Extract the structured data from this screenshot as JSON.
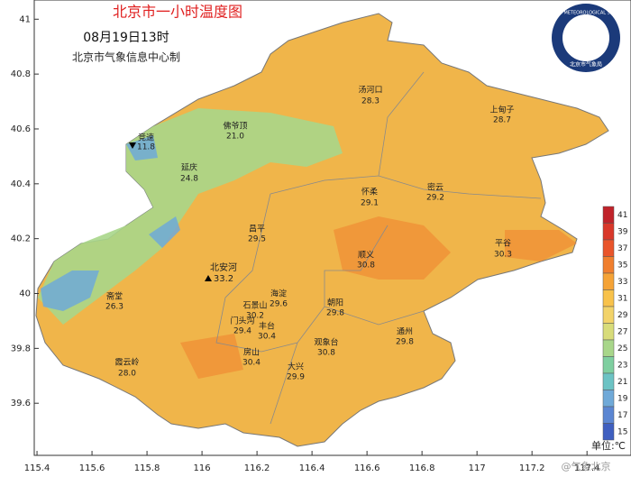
{
  "title": "北京市一小时温度图",
  "subtitle": "08月19日13时",
  "source": "北京市气象信息中心制",
  "logo": {
    "text": "BEIJING METEOROLOGICAL SERVICE",
    "org": "北京市气象局"
  },
  "axes": {
    "xlim": [
      115.39,
      117.56
    ],
    "ylim": [
      39.41,
      41.07
    ],
    "xticks": [
      115.4,
      115.6,
      115.8,
      116,
      116.2,
      116.4,
      116.6,
      116.8,
      117,
      117.2,
      117.4
    ],
    "yticks": [
      39.6,
      39.8,
      40,
      40.2,
      40.4,
      40.6,
      40.8,
      41
    ]
  },
  "legend": {
    "unit": "单位:℃",
    "values": [
      41,
      39,
      37,
      35,
      33,
      31,
      29,
      27,
      25,
      23,
      21,
      19,
      17,
      15
    ],
    "colors": [
      "#c0232a",
      "#d9382a",
      "#e9552b",
      "#f07f2e",
      "#f5a336",
      "#f8c24b",
      "#f2d36a",
      "#d8dc7a",
      "#a8d68a",
      "#7fcfa0",
      "#6cc3c4",
      "#6fa9d8",
      "#5b86d2",
      "#3f5fc0"
    ]
  },
  "stations": [
    {
      "name": "汤河口",
      "temp": "28.3"
    },
    {
      "name": "上甸子",
      "temp": "28.7"
    },
    {
      "name": "佛爷顶",
      "temp": "21.0"
    },
    {
      "name": "竞速",
      "temp": "11.8"
    },
    {
      "name": "延庆",
      "temp": "24.8"
    },
    {
      "name": "怀柔",
      "temp": "29.1"
    },
    {
      "name": "密云",
      "temp": "29.2"
    },
    {
      "name": "昌平",
      "temp": "29.5"
    },
    {
      "name": "平谷",
      "temp": "30.3"
    },
    {
      "name": "顺义",
      "temp": "30.8"
    },
    {
      "name": "北安河",
      "temp": "33.2"
    },
    {
      "name": "斋堂",
      "temp": "26.3"
    },
    {
      "name": "海淀",
      "temp": "29.6"
    },
    {
      "name": "朝阳",
      "temp": "29.8"
    },
    {
      "name": "石景山",
      "temp": "30.2"
    },
    {
      "name": "门头沟",
      "temp": "29.4"
    },
    {
      "name": "丰台",
      "temp": "30.4"
    },
    {
      "name": "观象台",
      "temp": "30.8"
    },
    {
      "name": "通州",
      "temp": "29.8"
    },
    {
      "name": "房山",
      "temp": "30.4"
    },
    {
      "name": "大兴",
      "temp": "29.9"
    },
    {
      "name": "霞云岭",
      "temp": "28.0"
    }
  ],
  "watermark": "@气象北京"
}
